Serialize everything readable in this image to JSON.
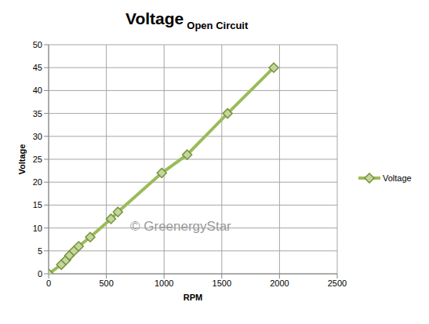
{
  "chart_data": {
    "type": "line",
    "title": "Voltage",
    "subtitle": "Open Circuit",
    "x_label": "RPM",
    "y_label": "Voltage",
    "annotations": [
      "© GreenergyStar"
    ],
    "x": [
      0,
      110,
      150,
      180,
      220,
      260,
      360,
      540,
      600,
      980,
      1200,
      1550,
      1950
    ],
    "series": [
      {
        "name": "Voltage",
        "color": "#9bbb59",
        "marker": "diamond",
        "values": [
          0,
          2,
          3,
          4,
          5,
          6,
          8,
          12,
          13.5,
          22,
          26,
          35,
          45
        ]
      }
    ],
    "xlim": [
      0,
      2500
    ],
    "xticks": [
      0,
      500,
      1000,
      1500,
      2000,
      2500
    ],
    "ylim": [
      0,
      50
    ],
    "yticks": [
      0,
      5,
      10,
      15,
      20,
      25,
      30,
      35,
      40,
      45,
      50
    ],
    "grid": true,
    "legend": "right"
  }
}
